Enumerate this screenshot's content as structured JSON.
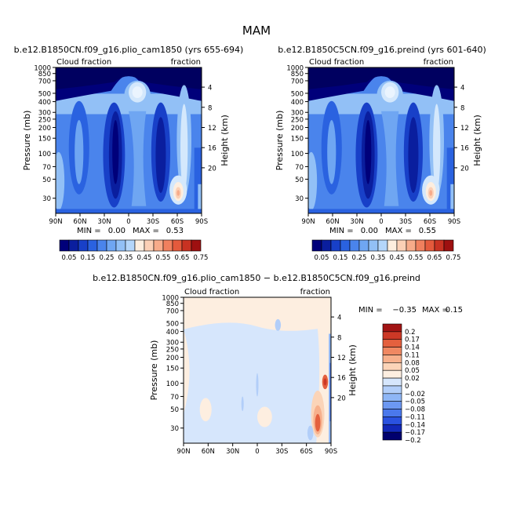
{
  "title": "MAM",
  "colors": {
    "blue_ramp": [
      "#00007a",
      "#0a1e9e",
      "#1840c8",
      "#2a62e0",
      "#4a84ec",
      "#6fa6f2",
      "#92c0f6",
      "#b4d6fa",
      "#d4e8fc",
      "#eaf4fe"
    ],
    "warm_ramp": [
      "#fdeedf",
      "#fbd0b6",
      "#f7ab8a",
      "#f0805e",
      "#e45a3c",
      "#c83222",
      "#9e1010"
    ],
    "diff_ramp": [
      "#00006e",
      "#1228b8",
      "#2a52e0",
      "#4a78ec",
      "#6c98f2",
      "#8eb6f6",
      "#b2cef9",
      "#d6e6fc",
      "#fdeee0",
      "#fbd4b8",
      "#f7b08c",
      "#f08862",
      "#e4603e",
      "#cc3826",
      "#a21414"
    ]
  },
  "chart_data": [
    {
      "type": "contour",
      "name": "panel-left",
      "title": "b.e12.B1850CN.f09_g16.plio_cam1850 (yrs 655-694)",
      "left_label": "Cloud fraction",
      "right_label": "fraction",
      "xlabel": "",
      "ylabel": "Pressure (mb)",
      "y2label": "Height (km)",
      "x_ticks": [
        "90N",
        "60N",
        "30N",
        "0",
        "30S",
        "60S",
        "90S"
      ],
      "y_ticks": [
        1000,
        850,
        700,
        500,
        400,
        300,
        250,
        200,
        150,
        100,
        70,
        50,
        30
      ],
      "y_ticks_shown": [
        "1000",
        "850",
        "700",
        "500",
        "400",
        "300",
        "250",
        "200",
        "150",
        "100",
        "70",
        "50",
        "30"
      ],
      "y2_ticks": [
        "4",
        "8",
        "12",
        "16",
        "20"
      ],
      "min_label": "MIN =",
      "min": "0.00",
      "max_label": "MAX =",
      "max": "0.53",
      "colorbar_labels": [
        "0.05",
        "0.15",
        "0.25",
        "0.35",
        "0.45",
        "0.55",
        "0.65",
        "0.75"
      ]
    },
    {
      "type": "contour",
      "name": "panel-right",
      "title": "b.e12.B1850C5CN.f09_g16.preind (yrs 601-640)",
      "left_label": "Cloud fraction",
      "right_label": "fraction",
      "xlabel": "",
      "ylabel": "Pressure (mb)",
      "y2label": "Height (km)",
      "x_ticks": [
        "90N",
        "60N",
        "30N",
        "0",
        "30S",
        "60S",
        "90S"
      ],
      "y_ticks": [
        1000,
        850,
        700,
        500,
        400,
        300,
        250,
        200,
        150,
        100,
        70,
        50,
        30
      ],
      "y_ticks_shown": [
        "1000",
        "850",
        "700",
        "500",
        "400",
        "300",
        "250",
        "200",
        "150",
        "100",
        "70",
        "50",
        "30"
      ],
      "y2_ticks": [
        "4",
        "8",
        "12",
        "16",
        "20"
      ],
      "min_label": "MIN =",
      "min": "0.00",
      "max_label": "MAX =",
      "max": "0.55",
      "colorbar_labels": [
        "0.05",
        "0.15",
        "0.25",
        "0.35",
        "0.45",
        "0.55",
        "0.65",
        "0.75"
      ]
    },
    {
      "type": "contour",
      "name": "panel-diff",
      "title": "b.e12.B1850CN.f09_g16.plio_cam1850 − b.e12.B1850C5CN.f09_g16.preind",
      "left_label": "Cloud fraction",
      "right_label": "fraction",
      "xlabel": "",
      "ylabel": "Pressure (mb)",
      "y2label": "Height (km)",
      "x_ticks": [
        "90N",
        "60N",
        "30N",
        "0",
        "30S",
        "60S",
        "90S"
      ],
      "y_ticks": [
        1000,
        850,
        700,
        500,
        400,
        300,
        250,
        200,
        150,
        100,
        70,
        50,
        30
      ],
      "y_ticks_shown": [
        "1000",
        "850",
        "700",
        "500",
        "400",
        "300",
        "250",
        "200",
        "150",
        "100",
        "70",
        "50",
        "30"
      ],
      "y2_ticks": [
        "4",
        "8",
        "12",
        "16",
        "20"
      ],
      "min_label": "MIN =",
      "min": "−0.35",
      "max_label": "MAX =",
      "max": "0.15",
      "colorbar_labels": [
        "0.2",
        "0.17",
        "0.14",
        "0.11",
        "0.08",
        "0.05",
        "0.02",
        "0",
        "−0.02",
        "−0.05",
        "−0.08",
        "−0.11",
        "−0.14",
        "−0.17",
        "−0.2"
      ]
    }
  ]
}
